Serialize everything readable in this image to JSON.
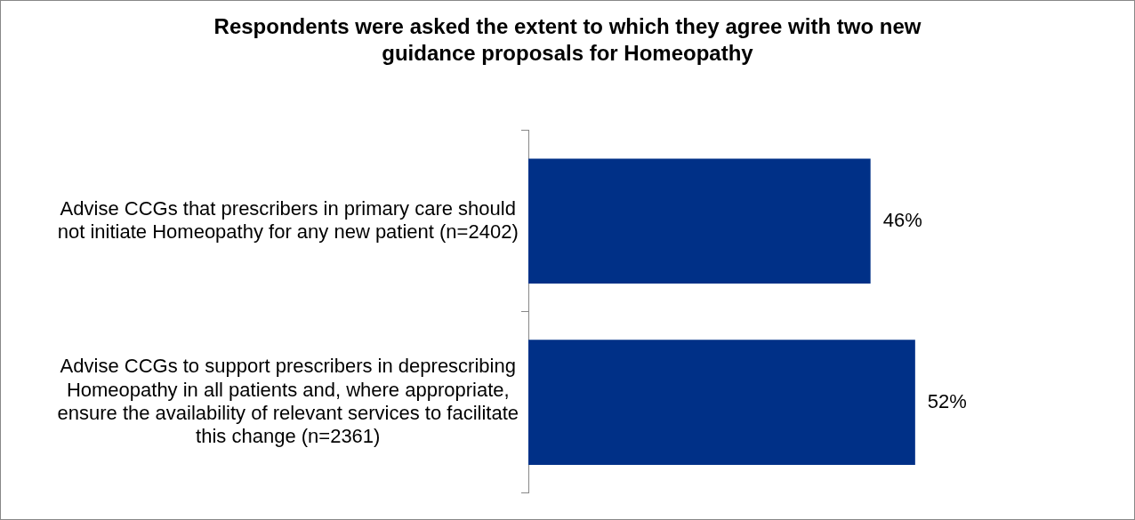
{
  "chart_data": {
    "type": "bar",
    "orientation": "horizontal",
    "title": "Respondents were asked the extent to which they agree with two new guidance proposals for Homeopathy",
    "categories": [
      "Advise CCGs that prescribers in primary care should not initiate Homeopathy for any new patient (n=2402)",
      "Advise CCGs to support prescribers in deprescribing Homeopathy in all patients and, where appropriate, ensure the availability of relevant services to facilitate this change (n=2361)"
    ],
    "values": [
      46,
      52
    ],
    "value_labels": [
      "46%",
      "52%"
    ],
    "color": "#003087",
    "tick_labels": "y",
    "legend": false
  }
}
